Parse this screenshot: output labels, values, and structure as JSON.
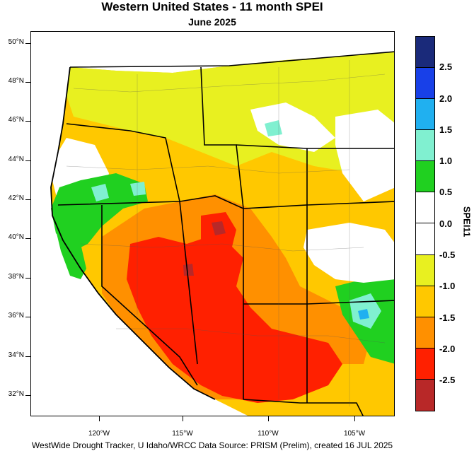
{
  "title": "Western United States - 11 month SPEI",
  "subtitle": "June 2025",
  "credit": "WestWide Drought Tracker, U Idaho/WRCC Data Source: PRISM (Prelim), created 16 JUL 2025",
  "colorbar": {
    "title": "SPEI11",
    "labels": [
      "2.5",
      "2.0",
      "1.5",
      "1.0",
      "0.5",
      "0.0",
      "-0.5",
      "-1.0",
      "-1.5",
      "-2.0",
      "-2.5"
    ],
    "colors": [
      "#1a2a7a",
      "#1840e8",
      "#20b0f0",
      "#80f0d0",
      "#20d020",
      "#ffffff",
      "#ffffff",
      "#e8f020",
      "#ffc800",
      "#ff9000",
      "#ff2000",
      "#b82828"
    ]
  },
  "lat_labels": [
    "50°N",
    "48°N",
    "46°N",
    "44°N",
    "42°N",
    "40°N",
    "38°N",
    "36°N",
    "34°N",
    "32°N"
  ],
  "lon_labels": [
    "120°W",
    "115°W",
    "110°W",
    "105°W"
  ],
  "legend_colors": {
    "darkred": "#b82828",
    "red": "#ff2000",
    "orange": "#ff9000",
    "amber": "#ffc800",
    "yellow": "#e8f020",
    "white": "#ffffff",
    "green": "#20d020",
    "aqua": "#80f0d0",
    "sky": "#20b0f0"
  }
}
